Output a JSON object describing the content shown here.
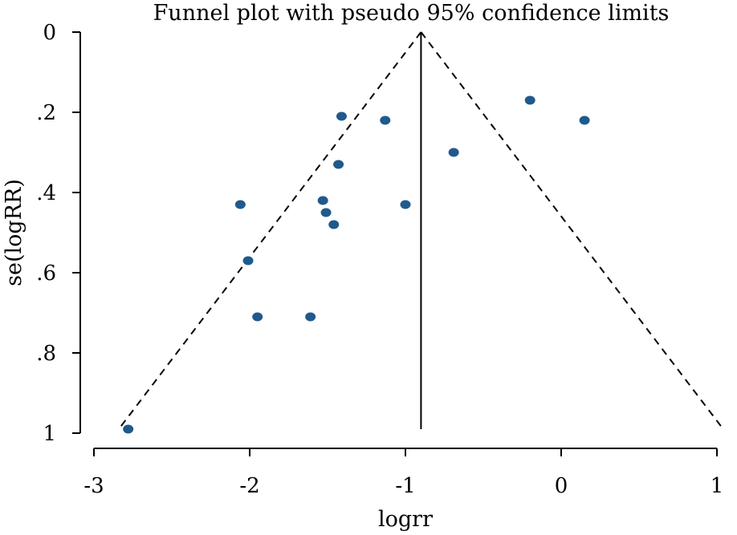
{
  "chart_data": {
    "type": "scatter",
    "title": "Funnel plot with pseudo 95% confidence limits",
    "xlabel": "logrr",
    "ylabel": "se(logRR)",
    "xlim": [
      -3,
      1
    ],
    "ylim": [
      0,
      1
    ],
    "y_reversed": true,
    "xticks": [
      -3,
      -2,
      -1,
      0,
      1
    ],
    "xtick_labels": [
      "-3",
      "-2",
      "-1",
      "0",
      "1"
    ],
    "yticks": [
      0,
      0.2,
      0.4,
      0.6,
      0.8,
      1
    ],
    "ytick_labels": [
      "0",
      ".2",
      ".4",
      ".6",
      ".8",
      "1"
    ],
    "grid": false,
    "pooled_effect": -0.9,
    "se_max": 0.99,
    "confidence_multiplier": 1.96,
    "points": [
      {
        "x": -2.78,
        "y": 0.99
      },
      {
        "x": -2.06,
        "y": 0.43
      },
      {
        "x": -2.01,
        "y": 0.57
      },
      {
        "x": -1.95,
        "y": 0.71
      },
      {
        "x": -1.61,
        "y": 0.71
      },
      {
        "x": -1.53,
        "y": 0.42
      },
      {
        "x": -1.51,
        "y": 0.45
      },
      {
        "x": -1.46,
        "y": 0.48
      },
      {
        "x": -1.43,
        "y": 0.33
      },
      {
        "x": -1.41,
        "y": 0.21
      },
      {
        "x": -1.13,
        "y": 0.22
      },
      {
        "x": -1.0,
        "y": 0.43
      },
      {
        "x": -0.69,
        "y": 0.3
      },
      {
        "x": -0.2,
        "y": 0.17
      },
      {
        "x": 0.15,
        "y": 0.22
      }
    ],
    "colors": {
      "points": "#1f5a8c",
      "lines": "#000000"
    }
  }
}
